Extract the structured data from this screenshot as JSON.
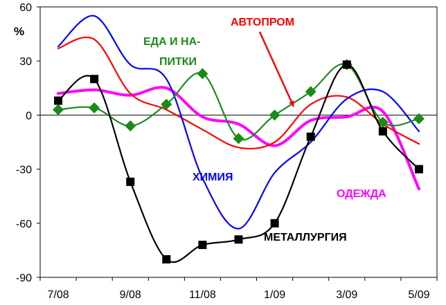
{
  "chart_data": {
    "type": "line",
    "title": "",
    "xlabel": "",
    "ylabel": "%",
    "ylim": [
      -90,
      60
    ],
    "yticks": [
      60,
      30,
      0,
      -30,
      -60,
      -90
    ],
    "ytick_labels": [
      "60",
      "30",
      "0",
      "-30",
      "-60",
      "-90"
    ],
    "x_categories": [
      "7/08",
      "8/08",
      "9/08",
      "10/08",
      "11/08",
      "12/08",
      "1/09",
      "2/09",
      "3/09",
      "4/09",
      "5/09"
    ],
    "x_tick_labels": [
      "7/08",
      "9/08",
      "11/08",
      "1/09",
      "3/09",
      "5/09"
    ],
    "grid": false,
    "series": [
      {
        "name": "МЕТАЛЛУРГИЯ",
        "color": "#000000",
        "marker": "square",
        "values": [
          8,
          20,
          -37,
          -80,
          -72,
          -69,
          -60,
          -12,
          28,
          -9,
          -30
        ]
      },
      {
        "name": "ЕДА И НА-ПИТКИ",
        "color": "#1a8a1a",
        "marker": "diamond",
        "values": [
          3,
          4,
          -6,
          6,
          23,
          -13,
          0,
          13,
          28,
          -4,
          -2
        ]
      },
      {
        "name": "АВТОПРОМ",
        "color": "#ff0000",
        "marker": "none",
        "values": [
          37,
          42,
          12,
          3,
          -8,
          -18,
          -15,
          6,
          10,
          -5,
          -16
        ]
      },
      {
        "name": "ХИМИЯ",
        "color": "#0000ff",
        "marker": "none",
        "values": [
          38,
          55,
          28,
          20,
          -35,
          -63,
          -32,
          -15,
          9,
          13,
          -9
        ]
      },
      {
        "name": "ОДЕЖДА",
        "color": "#ff00ff",
        "marker": "none",
        "values": [
          12,
          14,
          11,
          15,
          -1,
          -5,
          -17,
          -3,
          -1,
          2,
          -41
        ]
      }
    ],
    "annotations": {
      "metal": "МЕТАЛЛУРГИЯ",
      "food_line1": "ЕДА И НА-",
      "food_line2": "ПИТКИ",
      "auto": "АВТОПРОМ",
      "chem": "ХИМИЯ",
      "clothes": "ОДЕЖДА"
    }
  }
}
